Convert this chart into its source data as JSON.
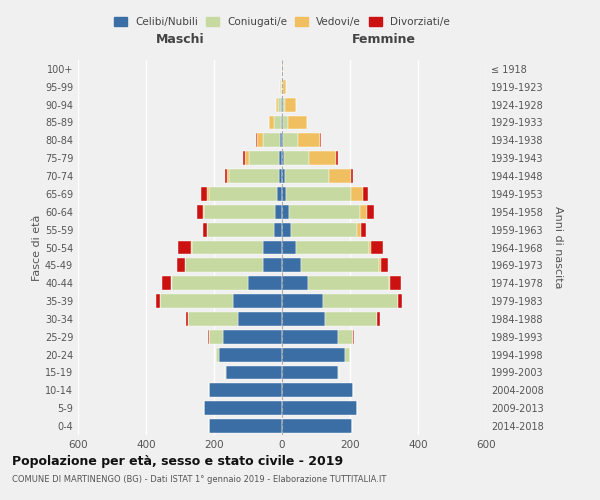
{
  "age_groups": [
    "0-4",
    "5-9",
    "10-14",
    "15-19",
    "20-24",
    "25-29",
    "30-34",
    "35-39",
    "40-44",
    "45-49",
    "50-54",
    "55-59",
    "60-64",
    "65-69",
    "70-74",
    "75-79",
    "80-84",
    "85-89",
    "90-94",
    "95-99",
    "100+"
  ],
  "birth_years": [
    "2014-2018",
    "2009-2013",
    "2004-2008",
    "1999-2003",
    "1994-1998",
    "1989-1993",
    "1984-1988",
    "1979-1983",
    "1974-1978",
    "1969-1973",
    "1964-1968",
    "1959-1963",
    "1954-1958",
    "1949-1953",
    "1944-1948",
    "1939-1943",
    "1934-1938",
    "1929-1933",
    "1924-1928",
    "1919-1923",
    "≤ 1918"
  ],
  "maschi_celibi": [
    215,
    230,
    215,
    165,
    185,
    175,
    130,
    145,
    100,
    55,
    55,
    25,
    20,
    15,
    10,
    8,
    5,
    3,
    2,
    1,
    1
  ],
  "maschi_coniugati": [
    0,
    0,
    0,
    2,
    10,
    40,
    145,
    215,
    225,
    230,
    210,
    195,
    210,
    200,
    145,
    90,
    50,
    20,
    10,
    3,
    0
  ],
  "maschi_vedovi": [
    0,
    0,
    0,
    0,
    0,
    0,
    0,
    0,
    1,
    1,
    2,
    2,
    3,
    5,
    8,
    12,
    20,
    15,
    5,
    2,
    0
  ],
  "maschi_divorziati": [
    0,
    0,
    0,
    0,
    0,
    2,
    8,
    10,
    28,
    22,
    38,
    10,
    18,
    18,
    5,
    5,
    2,
    0,
    0,
    0,
    0
  ],
  "femmine_celibi": [
    205,
    220,
    210,
    165,
    185,
    165,
    125,
    120,
    75,
    55,
    40,
    25,
    20,
    12,
    8,
    5,
    3,
    3,
    2,
    1,
    1
  ],
  "femmine_coniugati": [
    0,
    0,
    0,
    2,
    15,
    45,
    155,
    220,
    240,
    230,
    215,
    195,
    210,
    190,
    130,
    75,
    45,
    15,
    8,
    2,
    0
  ],
  "femmine_vedovi": [
    0,
    0,
    0,
    0,
    0,
    0,
    0,
    2,
    3,
    5,
    8,
    12,
    20,
    35,
    65,
    80,
    65,
    55,
    30,
    8,
    1
  ],
  "femmine_divorziati": [
    0,
    0,
    0,
    0,
    0,
    2,
    8,
    12,
    32,
    22,
    35,
    15,
    20,
    15,
    5,
    5,
    2,
    0,
    0,
    0,
    0
  ],
  "color_celibi": "#3a6ea5",
  "color_coniugati": "#c5d9a0",
  "color_vedovi": "#f0c060",
  "color_divorziati": "#cc1111",
  "title": "Popolazione per età, sesso e stato civile - 2019",
  "subtitle": "COMUNE DI MARTINENGO (BG) - Dati ISTAT 1° gennaio 2019 - Elaborazione TUTTITALIA.IT",
  "xlabel_left": "Maschi",
  "xlabel_right": "Femmine",
  "ylabel_left": "Fasce di età",
  "ylabel_right": "Anni di nascita",
  "xlim": 600,
  "legend_labels": [
    "Celibi/Nubili",
    "Coniugati/e",
    "Vedovi/e",
    "Divorziati/e"
  ],
  "background_color": "#f0f0f0"
}
